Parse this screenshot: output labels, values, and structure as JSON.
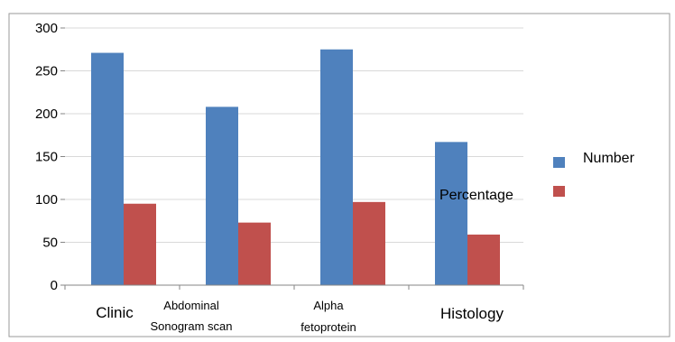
{
  "chart_data": {
    "type": "bar",
    "categories": [
      "Clinic",
      "Abdominal Sonogram scan",
      "Alpha fetoprotein",
      "Histology"
    ],
    "category_lines": [
      [
        "Clinic"
      ],
      [
        "Abdominal",
        "Sonogram  scan"
      ],
      [
        "Alpha",
        "fetoprotein"
      ],
      [
        "Histology"
      ]
    ],
    "series": [
      {
        "name": "Number",
        "values": [
          271,
          208,
          275,
          167
        ],
        "color": "#4f81bd"
      },
      {
        "name": "Percentage",
        "values": [
          95,
          73,
          97,
          59
        ],
        "color": "#c0504d"
      }
    ],
    "ylim": [
      0,
      300
    ],
    "yticks": [
      0,
      50,
      100,
      150,
      200,
      250,
      300
    ],
    "grid": true,
    "legend_position": "right",
    "title": "",
    "xlabel": "",
    "ylabel": ""
  }
}
